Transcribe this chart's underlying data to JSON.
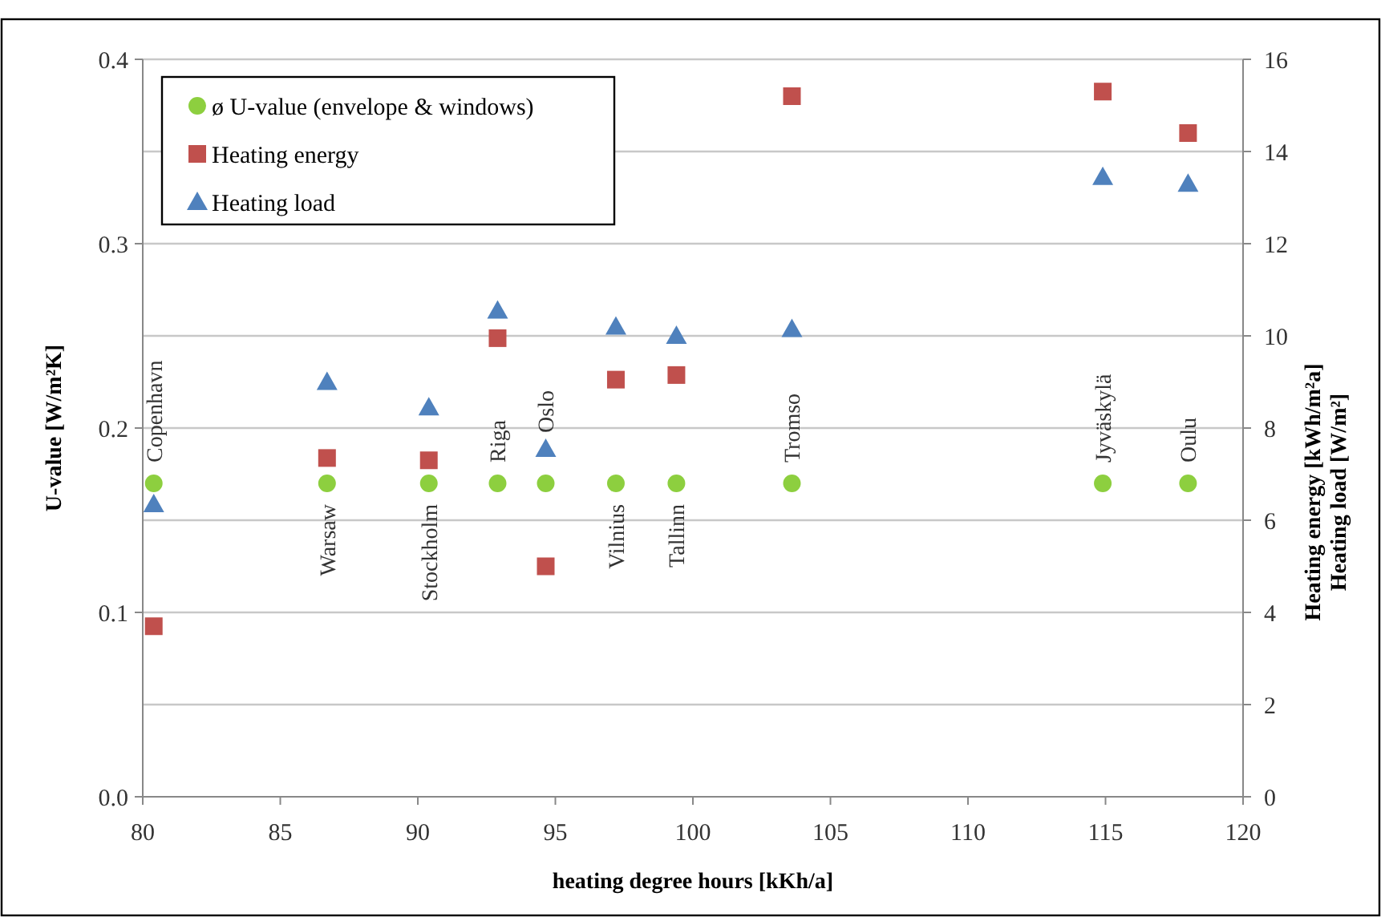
{
  "chart_data": {
    "type": "scatter",
    "xlabel": "heating degree hours [kKh/a]",
    "ylabel": "U-value [W/m²K]",
    "y2label": "Heating energy [kWh/m²a]\nHeating load [W/m²]",
    "x": [
      80.4,
      86.7,
      90.4,
      92.9,
      94.65,
      97.2,
      99.4,
      103.6,
      114.9,
      118.0
    ],
    "series": [
      {
        "name": "ø U-value (envelope & windows)",
        "color": "#8dcf3f",
        "marker": "circle",
        "values": [
          0.17,
          0.17,
          0.17,
          0.17,
          0.17,
          0.17,
          0.17,
          0.17,
          0.17,
          0.17
        ]
      },
      {
        "name": "Heating energy",
        "color": "#c0504d",
        "marker": "square",
        "axis": "y2",
        "values": [
          3.7,
          7.35,
          7.3,
          9.95,
          5.0,
          9.05,
          9.15,
          15.2,
          15.3,
          14.4
        ]
      },
      {
        "name": "Heating load",
        "color": "#4f81bd",
        "marker": "triangle",
        "axis": "y2",
        "values": [
          6.35,
          9.0,
          8.45,
          10.55,
          7.55,
          10.2,
          10.0,
          10.15,
          13.45,
          13.3
        ]
      }
    ],
    "annotations": [
      {
        "text": "Copenhavn",
        "x": 80.4,
        "y": 0.17
      },
      {
        "text": "Warsaw",
        "x": 86.7,
        "y": 0.17
      },
      {
        "text": "Stockholm",
        "x": 90.4,
        "y": 0.17
      },
      {
        "text": "Riga",
        "x": 92.9,
        "y": 0.17
      },
      {
        "text": "Oslo",
        "x": 94.65,
        "y": 0.17
      },
      {
        "text": "Vilnius",
        "x": 97.2,
        "y": 0.17
      },
      {
        "text": "Tallinn",
        "x": 99.4,
        "y": 0.17
      },
      {
        "text": "Tromso",
        "x": 103.6,
        "y": 0.17
      },
      {
        "text": "Jyväskylä",
        "x": 114.9,
        "y": 0.17
      },
      {
        "text": "Oulu",
        "x": 118.0,
        "y": 0.17
      }
    ],
    "xlim": [
      80,
      120
    ],
    "xticks": [
      80,
      85,
      90,
      95,
      100,
      105,
      110,
      115,
      120
    ],
    "ylim": [
      0,
      0.4
    ],
    "yticks": [
      {
        "value": 0,
        "label": "0.0"
      },
      0.1,
      0.2,
      0.3,
      0.4
    ],
    "y2lim": [
      0,
      16
    ],
    "y2ticks": [
      0,
      2,
      4,
      6,
      8,
      10,
      12,
      14,
      16
    ],
    "grid": "y",
    "legend": "top left"
  }
}
